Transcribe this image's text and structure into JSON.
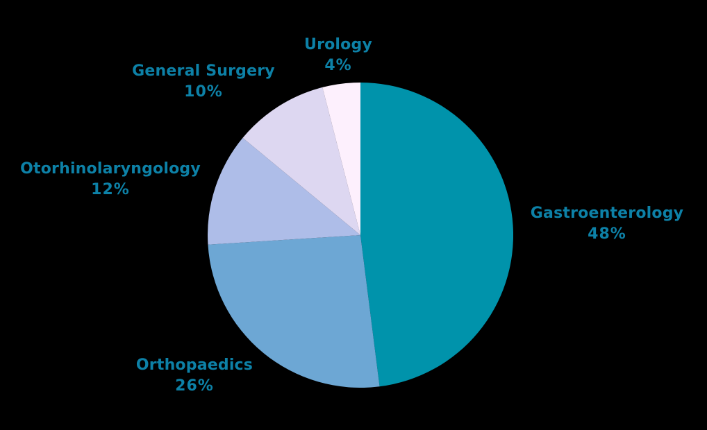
{
  "chart_data": {
    "type": "pie",
    "title": "",
    "categories": [
      "Gastroenterology",
      "Orthopaedics",
      "Otorhinolaryngology",
      "General Surgery",
      "Urology"
    ],
    "values": [
      48,
      26,
      12,
      10,
      4
    ],
    "value_labels": [
      "48%",
      "26%",
      "12%",
      "10%",
      "4%"
    ],
    "colors": [
      "#0093ab",
      "#6da7d4",
      "#aebde8",
      "#ddd7f1",
      "#fdf0fd"
    ],
    "start_angle_deg": -90,
    "direction": "clockwise",
    "legend": "none",
    "label_color": "#0d81a7",
    "background_color": "#000000"
  }
}
